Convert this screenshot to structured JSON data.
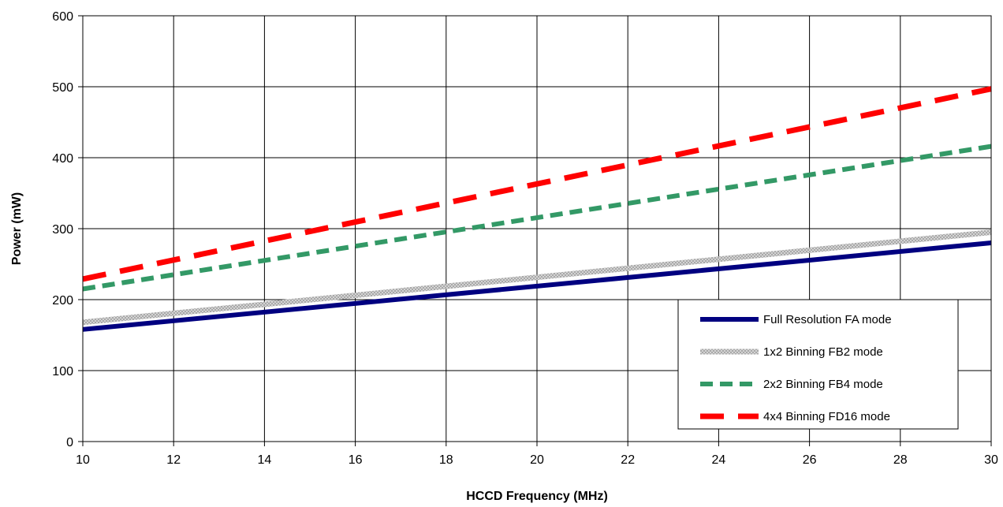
{
  "chart_data": {
    "type": "line",
    "title": "",
    "xlabel": "HCCD Frequency (MHz)",
    "ylabel": "Power (mW)",
    "xlim": [
      10,
      30
    ],
    "ylim": [
      0,
      600
    ],
    "xticks": [
      10,
      12,
      14,
      16,
      18,
      20,
      22,
      24,
      26,
      28,
      30
    ],
    "yticks": [
      0,
      100,
      200,
      300,
      400,
      500,
      600
    ],
    "grid": true,
    "legend_position": "bottom-right",
    "series": [
      {
        "name": "Full Resolution FA mode",
        "x": [
          10,
          30
        ],
        "y": [
          158,
          280
        ],
        "color": "#000080",
        "style": "solid"
      },
      {
        "name": "1x2 Binning FB2 mode",
        "x": [
          10,
          30
        ],
        "y": [
          168,
          295
        ],
        "color": "#c0c0c0",
        "style": "hatched"
      },
      {
        "name": "2x2 Binning FB4 mode",
        "x": [
          10,
          30
        ],
        "y": [
          215,
          416
        ],
        "color": "#339966",
        "style": "dashed"
      },
      {
        "name": "4x4 Binning FD16 mode",
        "x": [
          10,
          30
        ],
        "y": [
          229,
          497
        ],
        "color": "#ff0000",
        "style": "long-dashed"
      }
    ]
  }
}
